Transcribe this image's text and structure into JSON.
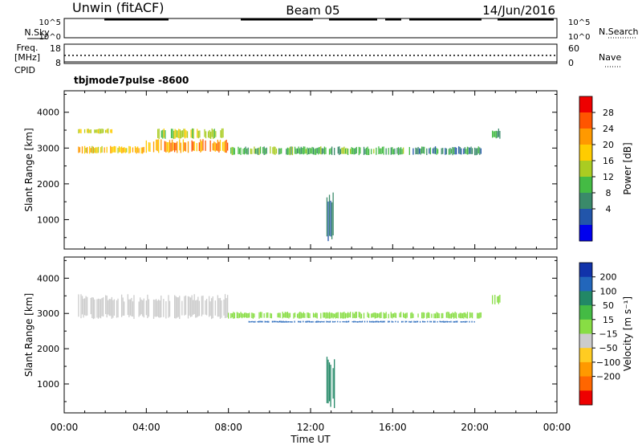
{
  "header": {
    "station": "Unwin (fitACF)",
    "beam": "Beam 05",
    "date": "14/Jun/2016"
  },
  "side_labels": {
    "nsky": "N.Sky",
    "nsearch": "N.Search",
    "freq": "Freq.",
    "freq_unit": "[MHz]",
    "nave": "Nave",
    "cpid_label": "CPID",
    "cpid_value": "tbjmode7pulse -8600"
  },
  "top_panels": {
    "noise_ticks": [
      "10^5",
      "10^0"
    ],
    "freq_ticks": [
      "18",
      "8"
    ],
    "nave_ticks": [
      "60",
      "0"
    ]
  },
  "chart_data": [
    {
      "type": "heatmap",
      "panel": "power",
      "xlabel": "Time UT",
      "ylabel": "Slant Range [km]",
      "x_ticks": [
        "00:00",
        "04:00",
        "08:00",
        "12:00",
        "16:00",
        "20:00",
        "00:00"
      ],
      "y_ticks": [
        1000,
        2000,
        3000,
        4000
      ],
      "xlim_hours": [
        0,
        24
      ],
      "ylim_km": [
        180,
        4600
      ],
      "colorbar": {
        "label": "Power [dB]",
        "ticks": [
          4,
          8,
          12,
          16,
          20,
          24,
          28
        ],
        "colors": [
          "#0000ee",
          "#2255aa",
          "#3a8a6a",
          "#44bb44",
          "#aacc22",
          "#ffcc00",
          "#ff9900",
          "#ff5500",
          "#ee0000"
        ]
      },
      "regions": [
        {
          "t0": 0.7,
          "t1": 4.0,
          "r0": 2840,
          "r1": 3060,
          "value": 22
        },
        {
          "t0": 4.0,
          "t1": 8.0,
          "r0": 2860,
          "r1": 3250,
          "value": 26
        },
        {
          "t0": 4.5,
          "t1": 7.8,
          "r0": 3250,
          "r1": 3550,
          "value": 18
        },
        {
          "t0": 0.7,
          "t1": 2.5,
          "r0": 3400,
          "r1": 3550,
          "value": 20
        },
        {
          "t0": 8.0,
          "t1": 17.0,
          "r0": 2800,
          "r1": 3050,
          "value": 14
        },
        {
          "t0": 17.0,
          "t1": 20.3,
          "r0": 2800,
          "r1": 3050,
          "value": 10
        },
        {
          "t0": 20.8,
          "t1": 21.3,
          "r0": 3250,
          "r1": 3550,
          "value": 12
        },
        {
          "t0": 12.8,
          "t1": 13.2,
          "r0": 300,
          "r1": 1800,
          "value": 8
        }
      ]
    },
    {
      "type": "heatmap",
      "panel": "velocity",
      "xlabel": "Time UT",
      "ylabel": "Slant Range [km]",
      "x_ticks": [
        "00:00",
        "04:00",
        "08:00",
        "12:00",
        "16:00",
        "20:00",
        "00:00"
      ],
      "y_ticks": [
        1000,
        2000,
        3000,
        4000
      ],
      "xlim_hours": [
        0,
        24
      ],
      "ylim_km": [
        180,
        4600
      ],
      "colorbar": {
        "label": "Velocity [m s⁻¹]",
        "ticks": [
          200,
          100,
          50,
          15,
          -15,
          -50,
          -100,
          -200
        ],
        "colors": [
          "#1133aa",
          "#2266bb",
          "#228866",
          "#44bb44",
          "#88dd44",
          "#cccccc",
          "#ffcc22",
          "#ff9900",
          "#ff6600",
          "#ee0000"
        ]
      },
      "regions": [
        {
          "t0": 0.7,
          "t1": 8.0,
          "r0": 2840,
          "r1": 3550,
          "value": 5
        },
        {
          "t0": 8.0,
          "t1": 20.3,
          "r0": 2850,
          "r1": 3050,
          "value": 40
        },
        {
          "t0": 9.0,
          "t1": 20.0,
          "r0": 2740,
          "r1": 2790,
          "value": 220
        },
        {
          "t0": 12.8,
          "t1": 13.2,
          "r0": 300,
          "r1": 1800,
          "value": 120
        },
        {
          "t0": 20.8,
          "t1": 21.3,
          "r0": 3250,
          "r1": 3550,
          "value": 30
        }
      ]
    }
  ]
}
